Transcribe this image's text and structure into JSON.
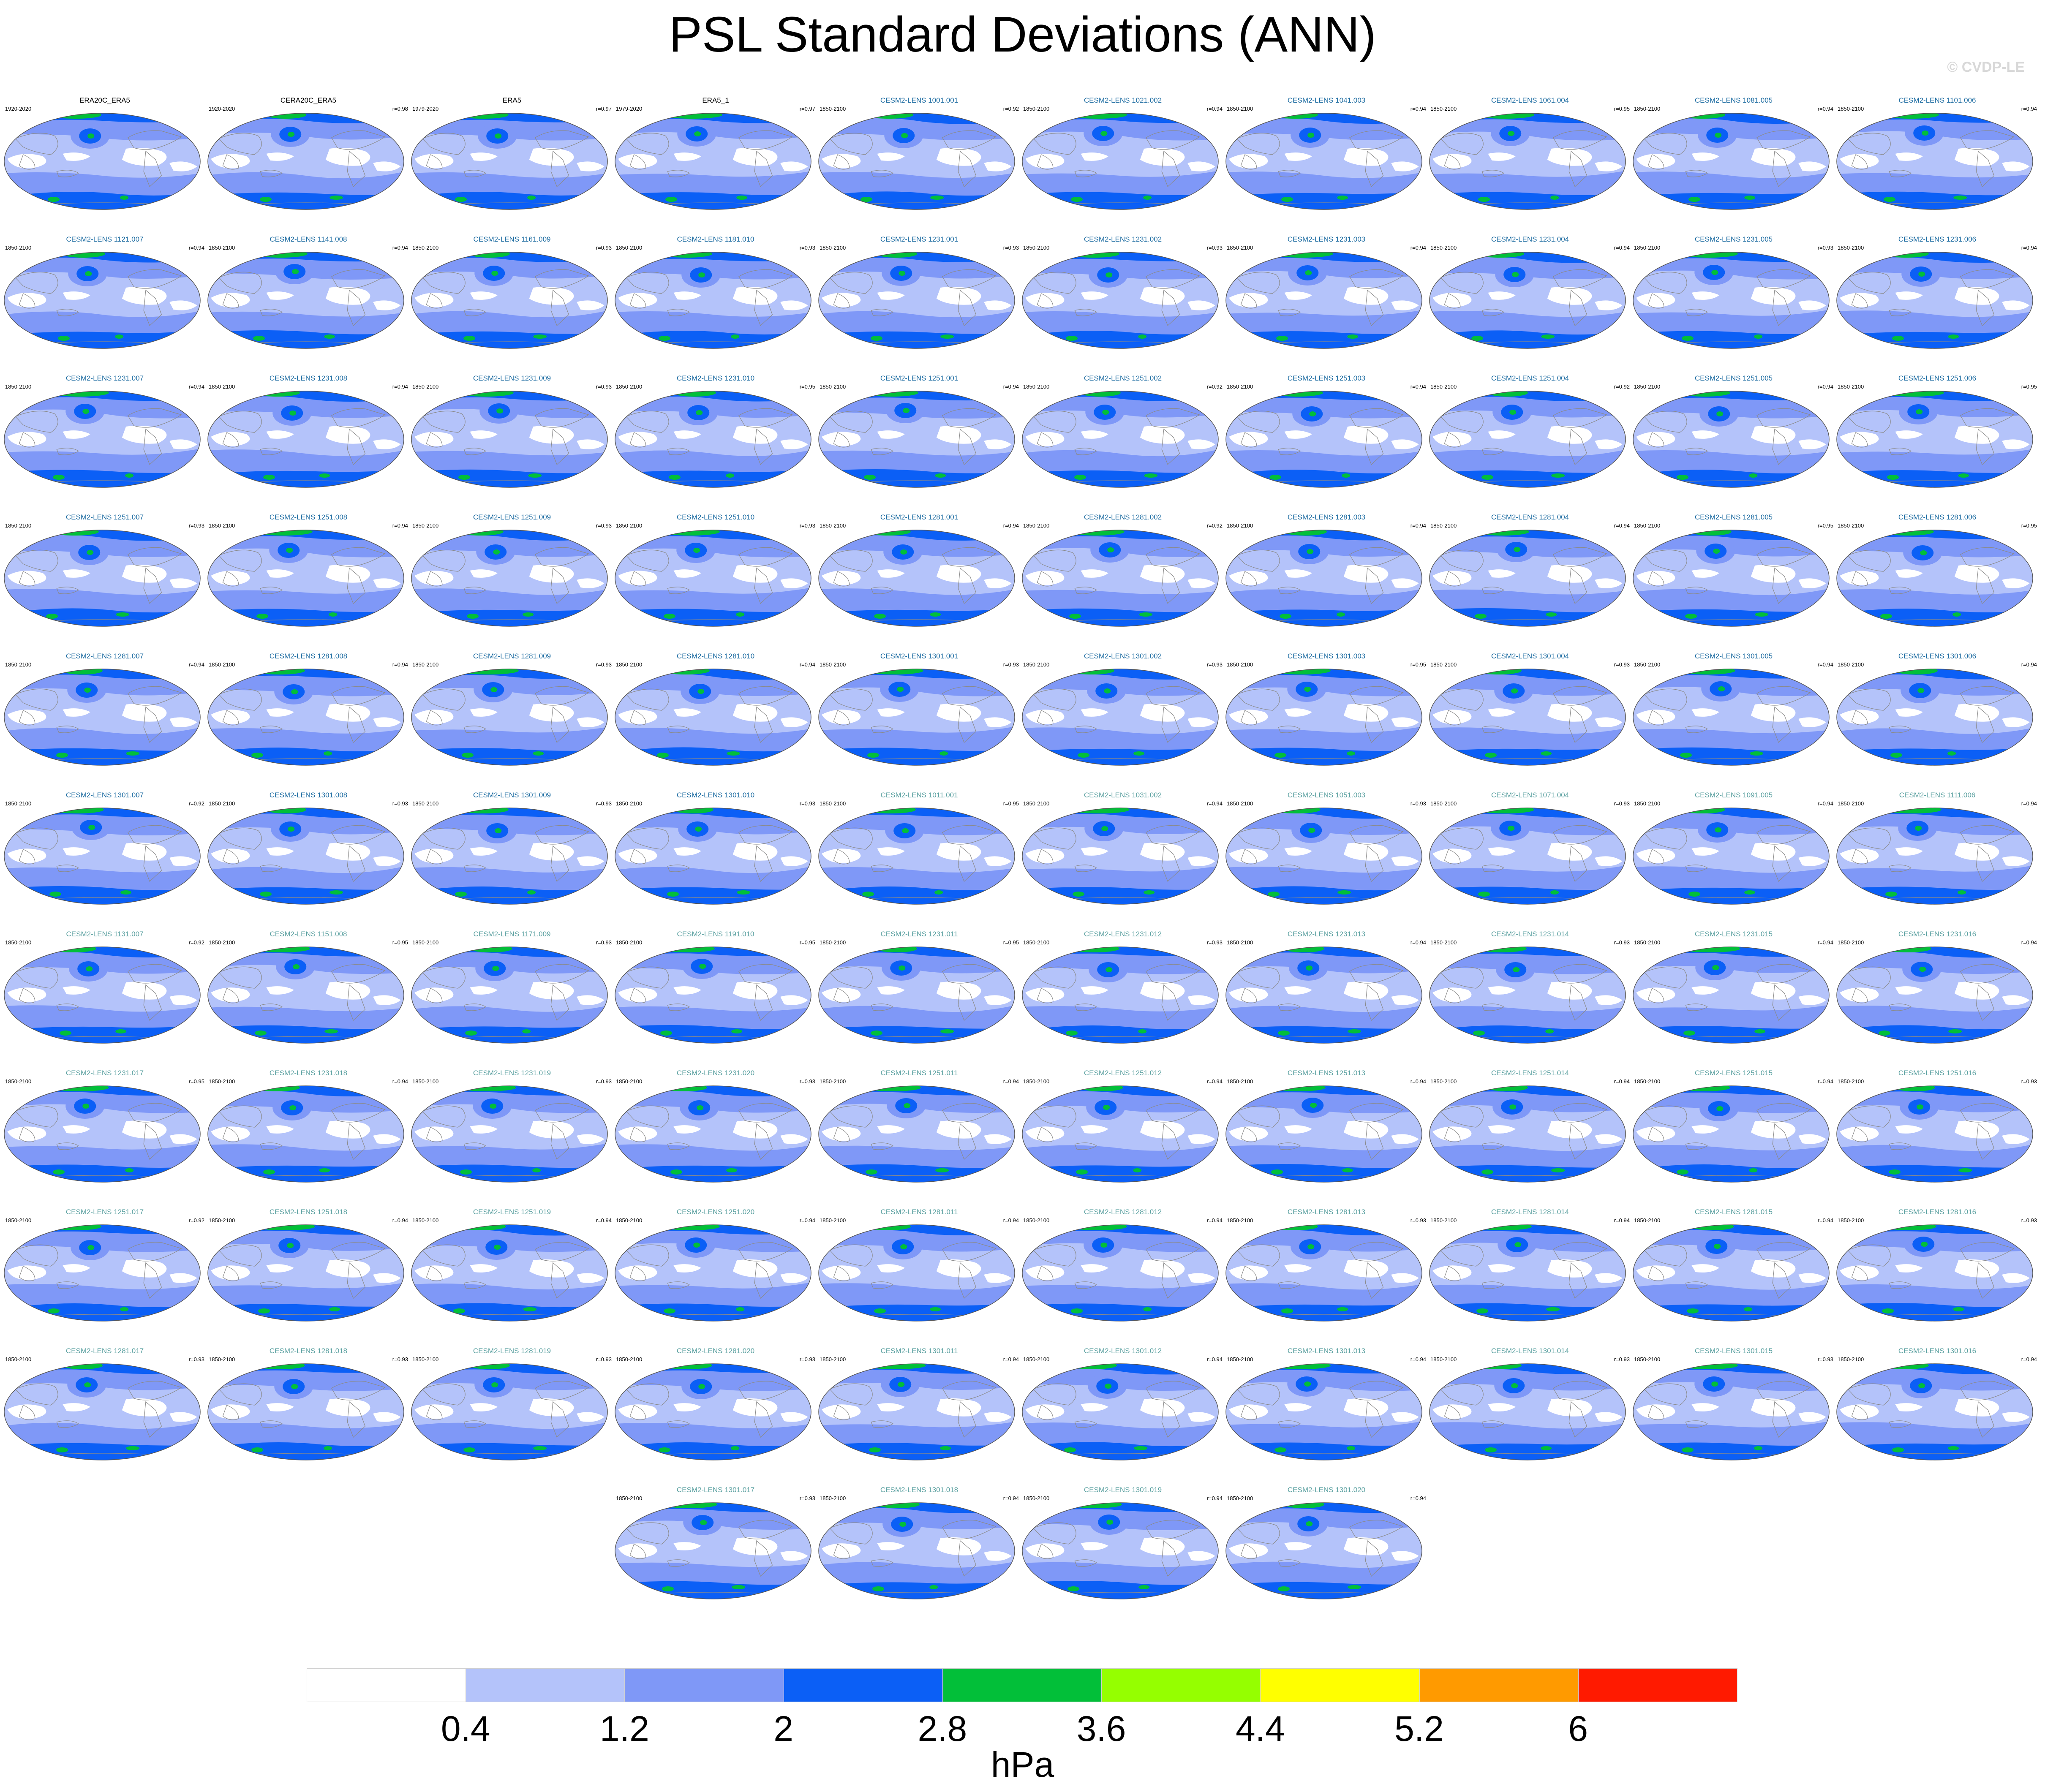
{
  "title": "PSL Standard Deviations (ANN)",
  "watermark": "© CVDP-LE",
  "units": "hPa",
  "colorbar": {
    "labels": [
      "0.4",
      "1.2",
      "2",
      "2.8",
      "3.6",
      "4.4",
      "5.2",
      "6"
    ],
    "colors": [
      "#ffffff",
      "#b4c3fa",
      "#7f98f7",
      "#0b5ff6",
      "#02bf39",
      "#95ff00",
      "#ffff00",
      "#ff9a00",
      "#ff1a00"
    ]
  },
  "chart_data": {
    "type": "heatmap",
    "title": "PSL Standard Deviations (ANN)",
    "units": "hPa",
    "contour_levels": [
      0.4,
      1.2,
      2,
      2.8,
      3.6,
      4.4,
      5.2,
      6
    ],
    "panels": [
      {
        "name": "ERA20C_ERA5",
        "period": "1920-2020",
        "r": "",
        "name_color": "#000000"
      },
      {
        "name": "CERA20C_ERA5",
        "period": "1920-2020",
        "r": "r=0.98",
        "name_color": "#000000"
      },
      {
        "name": "ERA5",
        "period": "1979-2020",
        "r": "r=0.97",
        "name_color": "#000000"
      },
      {
        "name": "ERA5_1",
        "period": "1979-2020",
        "r": "r=0.97",
        "name_color": "#000000"
      },
      {
        "name": "CESM2-LENS 1001.001",
        "period": "1850-2100",
        "r": "r=0.92",
        "name_color": "#1a6aa0"
      },
      {
        "name": "CESM2-LENS 1021.002",
        "period": "1850-2100",
        "r": "r=0.94",
        "name_color": "#1a6aa0"
      },
      {
        "name": "CESM2-LENS 1041.003",
        "period": "1850-2100",
        "r": "r=0.94",
        "name_color": "#1a6aa0"
      },
      {
        "name": "CESM2-LENS 1061.004",
        "period": "1850-2100",
        "r": "r=0.95",
        "name_color": "#1a6aa0"
      },
      {
        "name": "CESM2-LENS 1081.005",
        "period": "1850-2100",
        "r": "r=0.94",
        "name_color": "#1a6aa0"
      },
      {
        "name": "CESM2-LENS 1101.006",
        "period": "1850-2100",
        "r": "r=0.94",
        "name_color": "#1a6aa0"
      },
      {
        "name": "CESM2-LENS 1121.007",
        "period": "1850-2100",
        "r": "r=0.94",
        "name_color": "#1a6aa0"
      },
      {
        "name": "CESM2-LENS 1141.008",
        "period": "1850-2100",
        "r": "r=0.94",
        "name_color": "#1a6aa0"
      },
      {
        "name": "CESM2-LENS 1161.009",
        "period": "1850-2100",
        "r": "r=0.93",
        "name_color": "#1a6aa0"
      },
      {
        "name": "CESM2-LENS 1181.010",
        "period": "1850-2100",
        "r": "r=0.93",
        "name_color": "#1a6aa0"
      },
      {
        "name": "CESM2-LENS 1231.001",
        "period": "1850-2100",
        "r": "r=0.93",
        "name_color": "#1a6aa0"
      },
      {
        "name": "CESM2-LENS 1231.002",
        "period": "1850-2100",
        "r": "r=0.93",
        "name_color": "#1a6aa0"
      },
      {
        "name": "CESM2-LENS 1231.003",
        "period": "1850-2100",
        "r": "r=0.94",
        "name_color": "#1a6aa0"
      },
      {
        "name": "CESM2-LENS 1231.004",
        "period": "1850-2100",
        "r": "r=0.94",
        "name_color": "#1a6aa0"
      },
      {
        "name": "CESM2-LENS 1231.005",
        "period": "1850-2100",
        "r": "r=0.93",
        "name_color": "#1a6aa0"
      },
      {
        "name": "CESM2-LENS 1231.006",
        "period": "1850-2100",
        "r": "r=0.94",
        "name_color": "#1a6aa0"
      },
      {
        "name": "CESM2-LENS 1231.007",
        "period": "1850-2100",
        "r": "r=0.94",
        "name_color": "#1a6aa0"
      },
      {
        "name": "CESM2-LENS 1231.008",
        "period": "1850-2100",
        "r": "r=0.94",
        "name_color": "#1a6aa0"
      },
      {
        "name": "CESM2-LENS 1231.009",
        "period": "1850-2100",
        "r": "r=0.93",
        "name_color": "#1a6aa0"
      },
      {
        "name": "CESM2-LENS 1231.010",
        "period": "1850-2100",
        "r": "r=0.95",
        "name_color": "#1a6aa0"
      },
      {
        "name": "CESM2-LENS 1251.001",
        "period": "1850-2100",
        "r": "r=0.94",
        "name_color": "#1a6aa0"
      },
      {
        "name": "CESM2-LENS 1251.002",
        "period": "1850-2100",
        "r": "r=0.92",
        "name_color": "#1a6aa0"
      },
      {
        "name": "CESM2-LENS 1251.003",
        "period": "1850-2100",
        "r": "r=0.94",
        "name_color": "#1a6aa0"
      },
      {
        "name": "CESM2-LENS 1251.004",
        "period": "1850-2100",
        "r": "r=0.92",
        "name_color": "#1a6aa0"
      },
      {
        "name": "CESM2-LENS 1251.005",
        "period": "1850-2100",
        "r": "r=0.94",
        "name_color": "#1a6aa0"
      },
      {
        "name": "CESM2-LENS 1251.006",
        "period": "1850-2100",
        "r": "r=0.95",
        "name_color": "#1a6aa0"
      },
      {
        "name": "CESM2-LENS 1251.007",
        "period": "1850-2100",
        "r": "r=0.93",
        "name_color": "#1a6aa0"
      },
      {
        "name": "CESM2-LENS 1251.008",
        "period": "1850-2100",
        "r": "r=0.94",
        "name_color": "#1a6aa0"
      },
      {
        "name": "CESM2-LENS 1251.009",
        "period": "1850-2100",
        "r": "r=0.93",
        "name_color": "#1a6aa0"
      },
      {
        "name": "CESM2-LENS 1251.010",
        "period": "1850-2100",
        "r": "r=0.93",
        "name_color": "#1a6aa0"
      },
      {
        "name": "CESM2-LENS 1281.001",
        "period": "1850-2100",
        "r": "r=0.94",
        "name_color": "#1a6aa0"
      },
      {
        "name": "CESM2-LENS 1281.002",
        "period": "1850-2100",
        "r": "r=0.92",
        "name_color": "#1a6aa0"
      },
      {
        "name": "CESM2-LENS 1281.003",
        "period": "1850-2100",
        "r": "r=0.94",
        "name_color": "#1a6aa0"
      },
      {
        "name": "CESM2-LENS 1281.004",
        "period": "1850-2100",
        "r": "r=0.94",
        "name_color": "#1a6aa0"
      },
      {
        "name": "CESM2-LENS 1281.005",
        "period": "1850-2100",
        "r": "r=0.95",
        "name_color": "#1a6aa0"
      },
      {
        "name": "CESM2-LENS 1281.006",
        "period": "1850-2100",
        "r": "r=0.95",
        "name_color": "#1a6aa0"
      },
      {
        "name": "CESM2-LENS 1281.007",
        "period": "1850-2100",
        "r": "r=0.94",
        "name_color": "#1a6aa0"
      },
      {
        "name": "CESM2-LENS 1281.008",
        "period": "1850-2100",
        "r": "r=0.94",
        "name_color": "#1a6aa0"
      },
      {
        "name": "CESM2-LENS 1281.009",
        "period": "1850-2100",
        "r": "r=0.93",
        "name_color": "#1a6aa0"
      },
      {
        "name": "CESM2-LENS 1281.010",
        "period": "1850-2100",
        "r": "r=0.94",
        "name_color": "#1a6aa0"
      },
      {
        "name": "CESM2-LENS 1301.001",
        "period": "1850-2100",
        "r": "r=0.93",
        "name_color": "#1a6aa0"
      },
      {
        "name": "CESM2-LENS 1301.002",
        "period": "1850-2100",
        "r": "r=0.93",
        "name_color": "#1a6aa0"
      },
      {
        "name": "CESM2-LENS 1301.003",
        "period": "1850-2100",
        "r": "r=0.95",
        "name_color": "#1a6aa0"
      },
      {
        "name": "CESM2-LENS 1301.004",
        "period": "1850-2100",
        "r": "r=0.93",
        "name_color": "#1a6aa0"
      },
      {
        "name": "CESM2-LENS 1301.005",
        "period": "1850-2100",
        "r": "r=0.94",
        "name_color": "#1a6aa0"
      },
      {
        "name": "CESM2-LENS 1301.006",
        "period": "1850-2100",
        "r": "r=0.94",
        "name_color": "#1a6aa0"
      },
      {
        "name": "CESM2-LENS 1301.007",
        "period": "1850-2100",
        "r": "r=0.92",
        "name_color": "#1a6aa0"
      },
      {
        "name": "CESM2-LENS 1301.008",
        "period": "1850-2100",
        "r": "r=0.93",
        "name_color": "#1a6aa0"
      },
      {
        "name": "CESM2-LENS 1301.009",
        "period": "1850-2100",
        "r": "r=0.93",
        "name_color": "#1a6aa0"
      },
      {
        "name": "CESM2-LENS 1301.010",
        "period": "1850-2100",
        "r": "r=0.93",
        "name_color": "#1a6aa0"
      },
      {
        "name": "CESM2-LENS 1011.001",
        "period": "1850-2100",
        "r": "r=0.95",
        "name_color": "#5aa0a0"
      },
      {
        "name": "CESM2-LENS 1031.002",
        "period": "1850-2100",
        "r": "r=0.94",
        "name_color": "#5aa0a0"
      },
      {
        "name": "CESM2-LENS 1051.003",
        "period": "1850-2100",
        "r": "r=0.93",
        "name_color": "#5aa0a0"
      },
      {
        "name": "CESM2-LENS 1071.004",
        "period": "1850-2100",
        "r": "r=0.93",
        "name_color": "#5aa0a0"
      },
      {
        "name": "CESM2-LENS 1091.005",
        "period": "1850-2100",
        "r": "r=0.94",
        "name_color": "#5aa0a0"
      },
      {
        "name": "CESM2-LENS 1111.006",
        "period": "1850-2100",
        "r": "r=0.94",
        "name_color": "#5aa0a0"
      },
      {
        "name": "CESM2-LENS 1131.007",
        "period": "1850-2100",
        "r": "r=0.92",
        "name_color": "#5aa0a0"
      },
      {
        "name": "CESM2-LENS 1151.008",
        "period": "1850-2100",
        "r": "r=0.95",
        "name_color": "#5aa0a0"
      },
      {
        "name": "CESM2-LENS 1171.009",
        "period": "1850-2100",
        "r": "r=0.93",
        "name_color": "#5aa0a0"
      },
      {
        "name": "CESM2-LENS 1191.010",
        "period": "1850-2100",
        "r": "r=0.95",
        "name_color": "#5aa0a0"
      },
      {
        "name": "CESM2-LENS 1231.011",
        "period": "1850-2100",
        "r": "r=0.95",
        "name_color": "#5aa0a0"
      },
      {
        "name": "CESM2-LENS 1231.012",
        "period": "1850-2100",
        "r": "r=0.93",
        "name_color": "#5aa0a0"
      },
      {
        "name": "CESM2-LENS 1231.013",
        "period": "1850-2100",
        "r": "r=0.94",
        "name_color": "#5aa0a0"
      },
      {
        "name": "CESM2-LENS 1231.014",
        "period": "1850-2100",
        "r": "r=0.93",
        "name_color": "#5aa0a0"
      },
      {
        "name": "CESM2-LENS 1231.015",
        "period": "1850-2100",
        "r": "r=0.94",
        "name_color": "#5aa0a0"
      },
      {
        "name": "CESM2-LENS 1231.016",
        "period": "1850-2100",
        "r": "r=0.94",
        "name_color": "#5aa0a0"
      },
      {
        "name": "CESM2-LENS 1231.017",
        "period": "1850-2100",
        "r": "r=0.95",
        "name_color": "#5aa0a0"
      },
      {
        "name": "CESM2-LENS 1231.018",
        "period": "1850-2100",
        "r": "r=0.94",
        "name_color": "#5aa0a0"
      },
      {
        "name": "CESM2-LENS 1231.019",
        "period": "1850-2100",
        "r": "r=0.93",
        "name_color": "#5aa0a0"
      },
      {
        "name": "CESM2-LENS 1231.020",
        "period": "1850-2100",
        "r": "r=0.93",
        "name_color": "#5aa0a0"
      },
      {
        "name": "CESM2-LENS 1251.011",
        "period": "1850-2100",
        "r": "r=0.94",
        "name_color": "#5aa0a0"
      },
      {
        "name": "CESM2-LENS 1251.012",
        "period": "1850-2100",
        "r": "r=0.94",
        "name_color": "#5aa0a0"
      },
      {
        "name": "CESM2-LENS 1251.013",
        "period": "1850-2100",
        "r": "r=0.94",
        "name_color": "#5aa0a0"
      },
      {
        "name": "CESM2-LENS 1251.014",
        "period": "1850-2100",
        "r": "r=0.94",
        "name_color": "#5aa0a0"
      },
      {
        "name": "CESM2-LENS 1251.015",
        "period": "1850-2100",
        "r": "r=0.94",
        "name_color": "#5aa0a0"
      },
      {
        "name": "CESM2-LENS 1251.016",
        "period": "1850-2100",
        "r": "r=0.93",
        "name_color": "#5aa0a0"
      },
      {
        "name": "CESM2-LENS 1251.017",
        "period": "1850-2100",
        "r": "r=0.92",
        "name_color": "#5aa0a0"
      },
      {
        "name": "CESM2-LENS 1251.018",
        "period": "1850-2100",
        "r": "r=0.94",
        "name_color": "#5aa0a0"
      },
      {
        "name": "CESM2-LENS 1251.019",
        "period": "1850-2100",
        "r": "r=0.94",
        "name_color": "#5aa0a0"
      },
      {
        "name": "CESM2-LENS 1251.020",
        "period": "1850-2100",
        "r": "r=0.94",
        "name_color": "#5aa0a0"
      },
      {
        "name": "CESM2-LENS 1281.011",
        "period": "1850-2100",
        "r": "r=0.94",
        "name_color": "#5aa0a0"
      },
      {
        "name": "CESM2-LENS 1281.012",
        "period": "1850-2100",
        "r": "r=0.94",
        "name_color": "#5aa0a0"
      },
      {
        "name": "CESM2-LENS 1281.013",
        "period": "1850-2100",
        "r": "r=0.93",
        "name_color": "#5aa0a0"
      },
      {
        "name": "CESM2-LENS 1281.014",
        "period": "1850-2100",
        "r": "r=0.94",
        "name_color": "#5aa0a0"
      },
      {
        "name": "CESM2-LENS 1281.015",
        "period": "1850-2100",
        "r": "r=0.94",
        "name_color": "#5aa0a0"
      },
      {
        "name": "CESM2-LENS 1281.016",
        "period": "1850-2100",
        "r": "r=0.93",
        "name_color": "#5aa0a0"
      },
      {
        "name": "CESM2-LENS 1281.017",
        "period": "1850-2100",
        "r": "r=0.93",
        "name_color": "#5aa0a0"
      },
      {
        "name": "CESM2-LENS 1281.018",
        "period": "1850-2100",
        "r": "r=0.93",
        "name_color": "#5aa0a0"
      },
      {
        "name": "CESM2-LENS 1281.019",
        "period": "1850-2100",
        "r": "r=0.93",
        "name_color": "#5aa0a0"
      },
      {
        "name": "CESM2-LENS 1281.020",
        "period": "1850-2100",
        "r": "r=0.93",
        "name_color": "#5aa0a0"
      },
      {
        "name": "CESM2-LENS 1301.011",
        "period": "1850-2100",
        "r": "r=0.94",
        "name_color": "#5aa0a0"
      },
      {
        "name": "CESM2-LENS 1301.012",
        "period": "1850-2100",
        "r": "r=0.94",
        "name_color": "#5aa0a0"
      },
      {
        "name": "CESM2-LENS 1301.013",
        "period": "1850-2100",
        "r": "r=0.94",
        "name_color": "#5aa0a0"
      },
      {
        "name": "CESM2-LENS 1301.014",
        "period": "1850-2100",
        "r": "r=0.93",
        "name_color": "#5aa0a0"
      },
      {
        "name": "CESM2-LENS 1301.015",
        "period": "1850-2100",
        "r": "r=0.93",
        "name_color": "#5aa0a0"
      },
      {
        "name": "CESM2-LENS 1301.016",
        "period": "1850-2100",
        "r": "r=0.94",
        "name_color": "#5aa0a0"
      },
      {
        "name": "CESM2-LENS 1301.017",
        "period": "1850-2100",
        "r": "r=0.93",
        "name_color": "#5aa0a0"
      },
      {
        "name": "CESM2-LENS 1301.018",
        "period": "1850-2100",
        "r": "r=0.94",
        "name_color": "#5aa0a0"
      },
      {
        "name": "CESM2-LENS 1301.019",
        "period": "1850-2100",
        "r": "r=0.94",
        "name_color": "#5aa0a0"
      },
      {
        "name": "CESM2-LENS 1301.020",
        "period": "1850-2100",
        "r": "r=0.94",
        "name_color": "#5aa0a0"
      }
    ]
  }
}
